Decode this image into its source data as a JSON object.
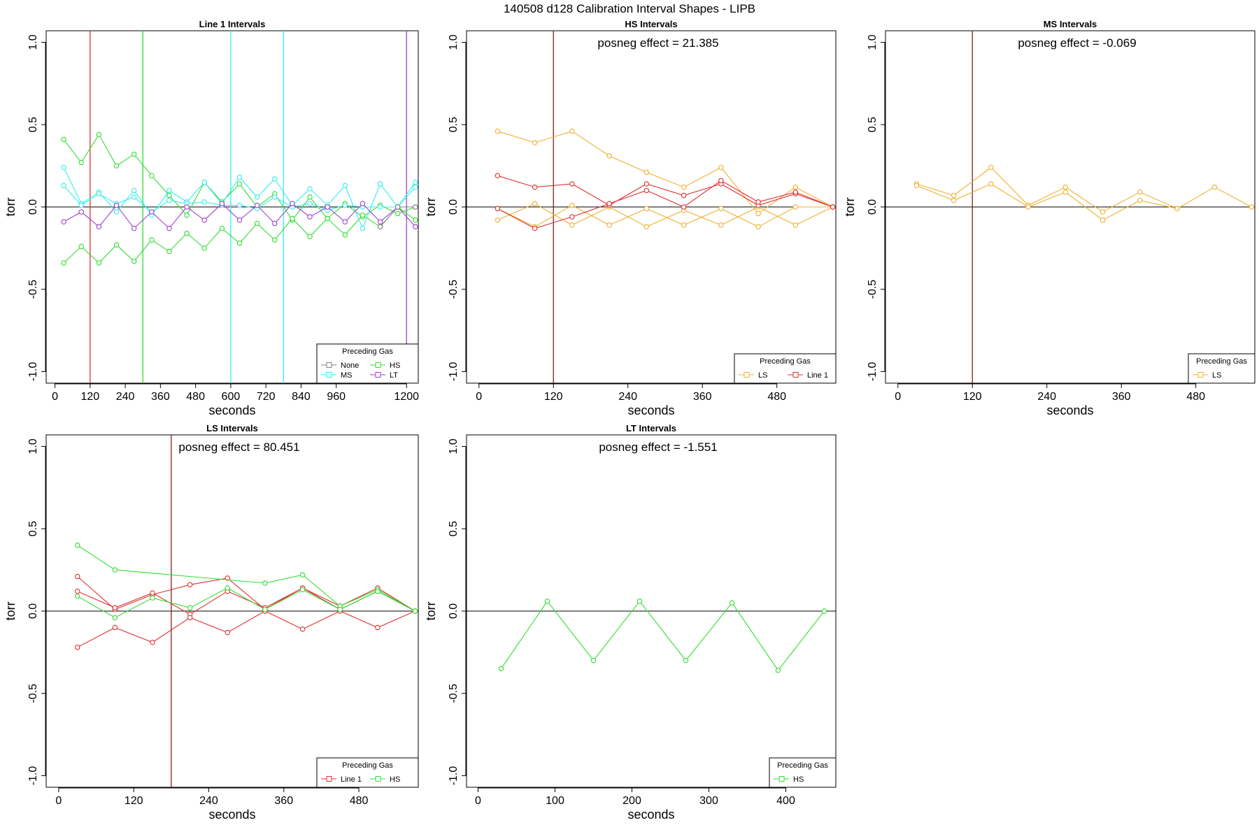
{
  "figure_title": "140508   d128   Calibration Interval Shapes - LIPB",
  "colors": {
    "None": "#808080",
    "HS": "#33dd33",
    "MS": "#33eeee",
    "LT": "#a040d0",
    "LS": "#f0b030",
    "Line 1": "#e03030",
    "ref": "#8b1a1a",
    "axis": "#000000"
  },
  "chart_data": [
    {
      "type": "line",
      "title": "Line 1 Intervals",
      "xlabel": "seconds",
      "ylabel": "torr",
      "xlim": [
        -30,
        1240
      ],
      "ylim": [
        -1.07,
        1.07
      ],
      "xticks": [
        0,
        120,
        240,
        360,
        480,
        600,
        720,
        840,
        960,
        1200
      ],
      "yticks": [
        -1.0,
        -0.5,
        0.0,
        0.5,
        1.0
      ],
      "yticklabels": [
        "-1.0",
        "-0.5",
        "0.0",
        "0.5",
        "1.0"
      ],
      "hline": 0,
      "vlines": [
        {
          "x": 120,
          "color": "Line 1"
        },
        {
          "x": 300,
          "color": "HS"
        },
        {
          "x": 600,
          "color": "MS"
        },
        {
          "x": 780,
          "color": "MS"
        },
        {
          "x": 1200,
          "color": "LT"
        }
      ],
      "annotation": "",
      "legend": {
        "title": "Preceding Gas",
        "position": "bottom-right",
        "entries": [
          "None",
          "HS",
          "MS",
          "LT"
        ],
        "cols": 2
      },
      "series": [
        {
          "name": "HS",
          "x": [
            30,
            90,
            150,
            210,
            270,
            330,
            390,
            450,
            510,
            570,
            630,
            690,
            750,
            810,
            870,
            930,
            990,
            1050,
            1110,
            1170,
            1230
          ],
          "y": [
            0.41,
            0.27,
            0.44,
            0.25,
            0.32,
            0.19,
            0.07,
            -0.05,
            0.15,
            0.03,
            0.14,
            0.0,
            0.08,
            -0.08,
            0.06,
            -0.07,
            0.02,
            -0.06,
            0.01,
            -0.04,
            0.0
          ]
        },
        {
          "name": "HS",
          "x": [
            30,
            90,
            150,
            210,
            270,
            330,
            390,
            450,
            510,
            570,
            630,
            690,
            750,
            810,
            870,
            930,
            990,
            1050,
            1110,
            1170,
            1230
          ],
          "y": [
            -0.34,
            -0.24,
            -0.34,
            -0.23,
            -0.33,
            -0.2,
            -0.27,
            -0.16,
            -0.25,
            -0.13,
            -0.22,
            -0.1,
            -0.2,
            -0.07,
            -0.18,
            -0.07,
            -0.17,
            -0.05,
            -0.12,
            0.0,
            -0.08
          ]
        },
        {
          "name": "MS",
          "x": [
            30,
            90,
            150,
            210,
            270,
            330,
            390,
            450,
            510,
            570,
            630,
            690,
            750,
            810,
            870,
            930,
            990,
            1050,
            1110,
            1170,
            1230
          ],
          "y": [
            0.24,
            0.02,
            0.09,
            -0.03,
            0.1,
            -0.05,
            0.1,
            0.03,
            0.15,
            0.02,
            0.18,
            0.06,
            0.17,
            0.01,
            0.11,
            0.01,
            0.13,
            -0.13,
            0.14,
            0.0,
            0.15
          ]
        },
        {
          "name": "MS",
          "x": [
            30,
            90,
            150,
            210,
            270,
            330,
            390,
            450,
            510,
            570,
            630,
            690,
            750,
            810,
            870,
            930,
            990,
            1050,
            1110,
            1170,
            1230
          ],
          "y": [
            0.13,
            0.01,
            0.08,
            0.02,
            0.06,
            -0.03,
            0.04,
            0.02,
            0.03,
            0.01,
            0.01,
            -0.01,
            0.06,
            0.0,
            0.02,
            -0.02,
            0.01,
            0.0,
            0.0,
            0.0,
            0.12
          ]
        },
        {
          "name": "LT",
          "x": [
            30,
            90,
            150,
            210,
            270,
            330,
            390,
            450,
            510,
            570,
            630,
            690,
            750,
            810,
            870,
            930,
            990,
            1050,
            1110,
            1170,
            1230
          ],
          "y": [
            -0.09,
            -0.03,
            -0.12,
            0.01,
            -0.13,
            -0.03,
            -0.13,
            0.0,
            -0.08,
            0.02,
            -0.08,
            0.01,
            -0.1,
            0.02,
            -0.06,
            0.0,
            -0.09,
            0.02,
            -0.09,
            0.0,
            -0.12
          ]
        },
        {
          "name": "None",
          "x": [
            1110,
            1170,
            1230
          ],
          "y": [
            -0.12,
            0.0,
            0.0
          ]
        }
      ]
    },
    {
      "type": "line",
      "title": "HS Intervals",
      "xlabel": "seconds",
      "ylabel": "torr",
      "xlim": [
        -20,
        575
      ],
      "ylim": [
        -1.07,
        1.07
      ],
      "xticks": [
        0,
        120,
        240,
        360,
        480
      ],
      "yticks": [
        -1.0,
        -0.5,
        0.0,
        0.5,
        1.0
      ],
      "yticklabels": [
        "-1.0",
        "-0.5",
        "0.0",
        "0.5",
        "1.0"
      ],
      "hline": 0,
      "vlines": [
        {
          "x": 120,
          "color": "ref"
        }
      ],
      "annotation": "posneg effect = 21.385",
      "legend": {
        "title": "Preceding Gas",
        "position": "bottom-right",
        "entries": [
          "LS",
          "Line 1"
        ],
        "cols": 2
      },
      "series": [
        {
          "name": "LS",
          "x": [
            30,
            90,
            150,
            210,
            270,
            330,
            390,
            450,
            510,
            570
          ],
          "y": [
            0.46,
            0.39,
            0.46,
            0.31,
            0.21,
            0.12,
            0.24,
            -0.04,
            0.12,
            0.0
          ]
        },
        {
          "name": "LS",
          "x": [
            30,
            90,
            150,
            210,
            270,
            330,
            390,
            450,
            510,
            570
          ],
          "y": [
            -0.08,
            0.02,
            -0.11,
            0.0,
            -0.12,
            -0.02,
            -0.11,
            0.0,
            -0.11,
            0.0
          ]
        },
        {
          "name": "LS",
          "x": [
            30,
            90,
            150,
            210,
            270,
            330,
            390,
            450,
            510,
            570
          ],
          "y": [
            -0.01,
            -0.12,
            0.01,
            -0.11,
            -0.01,
            -0.11,
            -0.01,
            -0.12,
            0.0,
            0.0
          ]
        },
        {
          "name": "Line 1",
          "x": [
            30,
            90,
            150,
            210,
            270,
            330,
            390,
            450,
            510,
            570
          ],
          "y": [
            0.19,
            0.12,
            0.14,
            0.01,
            0.14,
            0.07,
            0.14,
            0.01,
            0.08,
            0.0
          ]
        },
        {
          "name": "Line 1",
          "x": [
            30,
            90,
            150,
            210,
            270,
            330,
            390,
            450,
            510,
            570
          ],
          "y": [
            -0.01,
            -0.13,
            -0.06,
            0.02,
            0.1,
            0.0,
            0.16,
            0.03,
            0.09,
            0.0
          ]
        }
      ]
    },
    {
      "type": "line",
      "title": "MS Intervals",
      "xlabel": "seconds",
      "ylabel": "torr",
      "xlim": [
        -20,
        575
      ],
      "ylim": [
        -1.07,
        1.07
      ],
      "xticks": [
        0,
        120,
        240,
        360,
        480
      ],
      "yticks": [
        -1.0,
        -0.5,
        0.0,
        0.5,
        1.0
      ],
      "yticklabels": [
        "-1.0",
        "-0.5",
        "0.0",
        "0.5",
        "1.0"
      ],
      "hline": 0,
      "vlines": [
        {
          "x": 120,
          "color": "ref"
        }
      ],
      "annotation": "posneg effect = -0.069",
      "legend": {
        "title": "Preceding Gas",
        "position": "bottom-right",
        "entries": [
          "LS"
        ],
        "cols": 1
      },
      "series": [
        {
          "name": "LS",
          "x": [
            30,
            90,
            150,
            210,
            270,
            330,
            390,
            450,
            510,
            570
          ],
          "y": [
            0.14,
            0.07,
            0.24,
            0.01,
            0.12,
            -0.03,
            0.09,
            -0.01,
            0.12,
            0.0
          ]
        },
        {
          "name": "LS",
          "x": [
            30,
            90,
            150,
            210,
            270,
            330,
            390,
            450
          ],
          "y": [
            0.13,
            0.04,
            0.14,
            0.0,
            0.09,
            -0.08,
            0.04,
            -0.01
          ]
        }
      ]
    },
    {
      "type": "line",
      "title": "LS Intervals",
      "xlabel": "seconds",
      "ylabel": "torr",
      "xlim": [
        -20,
        575
      ],
      "ylim": [
        -1.07,
        1.07
      ],
      "xticks": [
        0,
        120,
        240,
        360,
        480
      ],
      "yticks": [
        -1.0,
        -0.5,
        0.0,
        0.5,
        1.0
      ],
      "yticklabels": [
        "-1.0",
        "-0.5",
        "0.0",
        "0.5",
        "1.0"
      ],
      "hline": 0,
      "vlines": [
        {
          "x": 180,
          "color": "ref"
        }
      ],
      "annotation": "posneg effect = 80.451",
      "legend": {
        "title": "Preceding Gas",
        "position": "bottom-right",
        "entries": [
          "Line 1",
          "HS"
        ],
        "cols": 2
      },
      "series": [
        {
          "name": "Line 1",
          "x": [
            30,
            90,
            150,
            210,
            270,
            330,
            390,
            450,
            510,
            570
          ],
          "y": [
            0.21,
            0.01,
            0.1,
            0.16,
            0.2,
            0.01,
            0.14,
            0.03,
            0.14,
            0.0
          ]
        },
        {
          "name": "Line 1",
          "x": [
            30,
            90,
            150,
            210,
            270,
            330,
            390,
            450,
            510,
            570
          ],
          "y": [
            0.12,
            0.02,
            0.11,
            -0.02,
            0.12,
            0.02,
            0.14,
            0.01,
            0.12,
            0.0
          ]
        },
        {
          "name": "Line 1",
          "x": [
            30,
            90,
            150,
            210,
            270,
            330,
            390,
            450,
            510,
            570
          ],
          "y": [
            -0.22,
            -0.1,
            -0.19,
            -0.04,
            -0.13,
            0.0,
            -0.11,
            0.0,
            -0.1,
            0.0
          ]
        },
        {
          "name": "HS",
          "x": [
            30,
            90,
            330,
            390,
            450,
            510,
            570
          ],
          "y": [
            0.4,
            0.25,
            0.17,
            0.22,
            0.03,
            0.13,
            0.0
          ]
        },
        {
          "name": "HS",
          "x": [
            30,
            90,
            150,
            210,
            270,
            330,
            390,
            450,
            510,
            570
          ],
          "y": [
            0.09,
            -0.04,
            0.08,
            0.02,
            0.14,
            0.01,
            0.13,
            0.01,
            0.12,
            0.0
          ]
        }
      ]
    },
    {
      "type": "line",
      "title": "LT Intervals",
      "xlabel": "seconds",
      "ylabel": "torr",
      "xlim": [
        -15,
        465
      ],
      "ylim": [
        -1.07,
        1.07
      ],
      "xticks": [
        0,
        100,
        200,
        300,
        400
      ],
      "yticks": [
        -1.0,
        -0.5,
        0.0,
        0.5,
        1.0
      ],
      "yticklabels": [
        "-1.0",
        "-0.5",
        "0.0",
        "0.5",
        "1.0"
      ],
      "hline": 0,
      "vlines": [],
      "annotation": "posneg effect = -1.551",
      "legend": {
        "title": "Preceding Gas",
        "position": "bottom-right",
        "entries": [
          "HS"
        ],
        "cols": 1
      },
      "series": [
        {
          "name": "HS",
          "x": [
            30,
            90,
            150,
            210,
            270,
            330,
            390,
            450
          ],
          "y": [
            -0.35,
            0.06,
            -0.3,
            0.06,
            -0.3,
            0.05,
            -0.36,
            0.0
          ]
        }
      ]
    }
  ]
}
